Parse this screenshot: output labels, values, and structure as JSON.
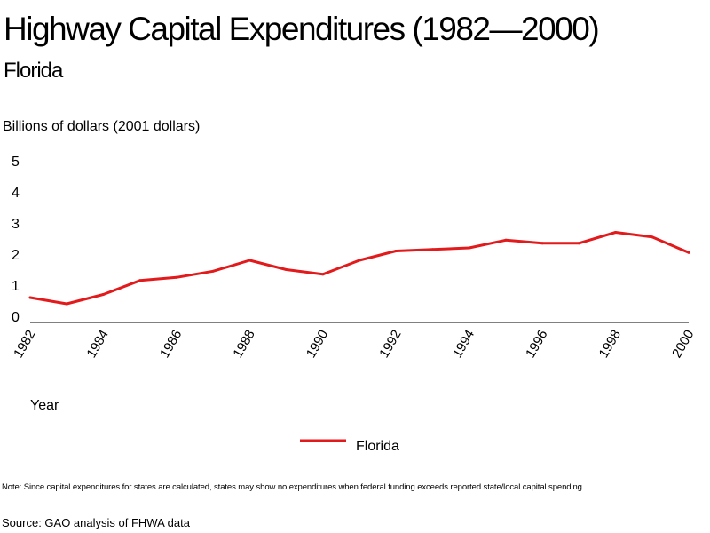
{
  "chart_data": {
    "type": "line",
    "title": "Highway Capital Expenditures (1982—2000)",
    "subtitle": "Florida",
    "ylabel": "Billions of dollars (2001 dollars)",
    "xlabel": "Year",
    "ylim": [
      0,
      5
    ],
    "yticks": [
      0,
      1,
      2,
      3,
      4,
      5
    ],
    "xlim": [
      1982,
      2000
    ],
    "xticks": [
      1982,
      1984,
      1986,
      1988,
      1990,
      1992,
      1994,
      1996,
      1998,
      2000
    ],
    "grid": false,
    "legend_position": "bottom-center",
    "x": [
      1982,
      1983,
      1984,
      1985,
      1986,
      1987,
      1988,
      1989,
      1990,
      1991,
      1992,
      1993,
      1994,
      1995,
      1996,
      1997,
      1998,
      1999,
      2000
    ],
    "series": [
      {
        "name": "Florida",
        "color": "#e31a1c",
        "values": [
          0.8,
          0.6,
          0.9,
          1.35,
          1.45,
          1.65,
          2.0,
          1.7,
          1.55,
          2.0,
          2.3,
          2.35,
          2.4,
          2.65,
          2.55,
          2.55,
          2.9,
          2.75,
          2.25
        ]
      }
    ]
  },
  "note": "Note: Since capital expenditures for states are calculated, states may show no expenditures when federal funding exceeds reported state/local capital spending.",
  "source": "Source: GAO analysis of FHWA data"
}
